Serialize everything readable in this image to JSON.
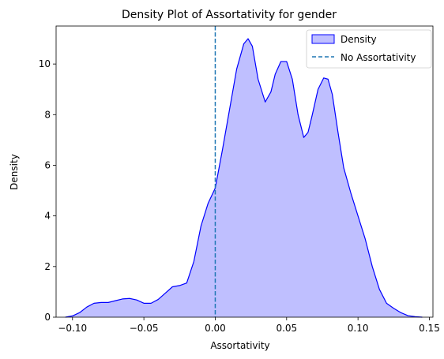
{
  "chart_data": {
    "type": "area",
    "title": "Density Plot of Assortativity for gender",
    "xlabel": "Assortativity",
    "ylabel": "Density",
    "xlim": [
      -0.1115,
      0.1525
    ],
    "ylim": [
      0,
      11.5
    ],
    "xticks": [
      -0.1,
      -0.05,
      0.0,
      0.05,
      0.1,
      0.15
    ],
    "xtick_labels": [
      "−0.10",
      "−0.05",
      "0.00",
      "0.05",
      "0.10",
      "0.15"
    ],
    "yticks": [
      0,
      2,
      4,
      6,
      8,
      10
    ],
    "ytick_labels": [
      "0",
      "2",
      "4",
      "6",
      "8",
      "10"
    ],
    "grid": false,
    "legend": {
      "position": "top-right",
      "entries": [
        "Density",
        "No Assortativity"
      ]
    },
    "series": [
      {
        "name": "Density",
        "color": "#0000ff",
        "fill": "#bfbfff",
        "x": [
          -0.105,
          -0.1,
          -0.095,
          -0.09,
          -0.085,
          -0.08,
          -0.075,
          -0.07,
          -0.065,
          -0.06,
          -0.055,
          -0.05,
          -0.045,
          -0.04,
          -0.035,
          -0.03,
          -0.025,
          -0.02,
          -0.015,
          -0.01,
          -0.005,
          0.0,
          0.005,
          0.01,
          0.015,
          0.02,
          0.023,
          0.026,
          0.03,
          0.035,
          0.039,
          0.042,
          0.046,
          0.05,
          0.054,
          0.058,
          0.062,
          0.065,
          0.068,
          0.072,
          0.076,
          0.079,
          0.082,
          0.086,
          0.09,
          0.095,
          0.1,
          0.105,
          0.11,
          0.115,
          0.12,
          0.125,
          0.13,
          0.135,
          0.14,
          0.145
        ],
        "y": [
          0.0,
          0.05,
          0.18,
          0.4,
          0.55,
          0.58,
          0.58,
          0.65,
          0.72,
          0.74,
          0.68,
          0.55,
          0.55,
          0.7,
          0.95,
          1.2,
          1.25,
          1.35,
          2.2,
          3.6,
          4.5,
          5.1,
          6.6,
          8.2,
          9.8,
          10.8,
          11.0,
          10.7,
          9.4,
          8.5,
          8.9,
          9.6,
          10.1,
          10.1,
          9.4,
          8.0,
          7.1,
          7.3,
          8.0,
          9.0,
          9.45,
          9.4,
          8.8,
          7.3,
          5.9,
          4.9,
          4.0,
          3.1,
          2.0,
          1.1,
          0.55,
          0.35,
          0.18,
          0.06,
          0.02,
          0.0
        ]
      }
    ],
    "reference_line": {
      "name": "No Assortativity",
      "x": 0.0,
      "color": "#1f77b4",
      "style": "dashed"
    }
  }
}
